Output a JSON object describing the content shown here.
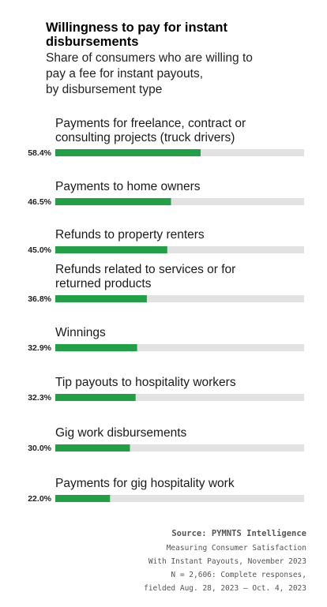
{
  "chart_data": {
    "type": "bar",
    "orientation": "horizontal",
    "title": "Willingness to pay for instant disbursements",
    "subtitle": "Share of consumers who are willing to pay a fee for instant payouts, by disbursement type",
    "categories": [
      "Payments for freelance, contract or consulting projects (truck drivers)",
      "Payments to home owners",
      "Refunds to property renters",
      "Refunds related to services or for returned products",
      "Winnings",
      "Tip payouts to hospitality workers",
      "Gig work disbursements",
      "Payments for gig hospitality work"
    ],
    "values": [
      58.4,
      46.5,
      45.0,
      36.8,
      32.9,
      32.3,
      30.0,
      22.0
    ],
    "value_labels": [
      "58.4%",
      "46.5%",
      "45.0%",
      "36.8%",
      "32.9%",
      "32.3%",
      "30.0%",
      "22.0%"
    ],
    "xlim": [
      0,
      100
    ],
    "bar_color": "#22a046",
    "track_color": "#e2e2e2"
  },
  "source": {
    "label": "Source: PYMNTS Intelligence",
    "lines": [
      "Measuring Consumer Satisfaction",
      "With Instant Payouts, November 2023",
      "N = 2,606: Complete responses,",
      "fielded Aug. 28, 2023 – Oct. 4, 2023"
    ]
  }
}
